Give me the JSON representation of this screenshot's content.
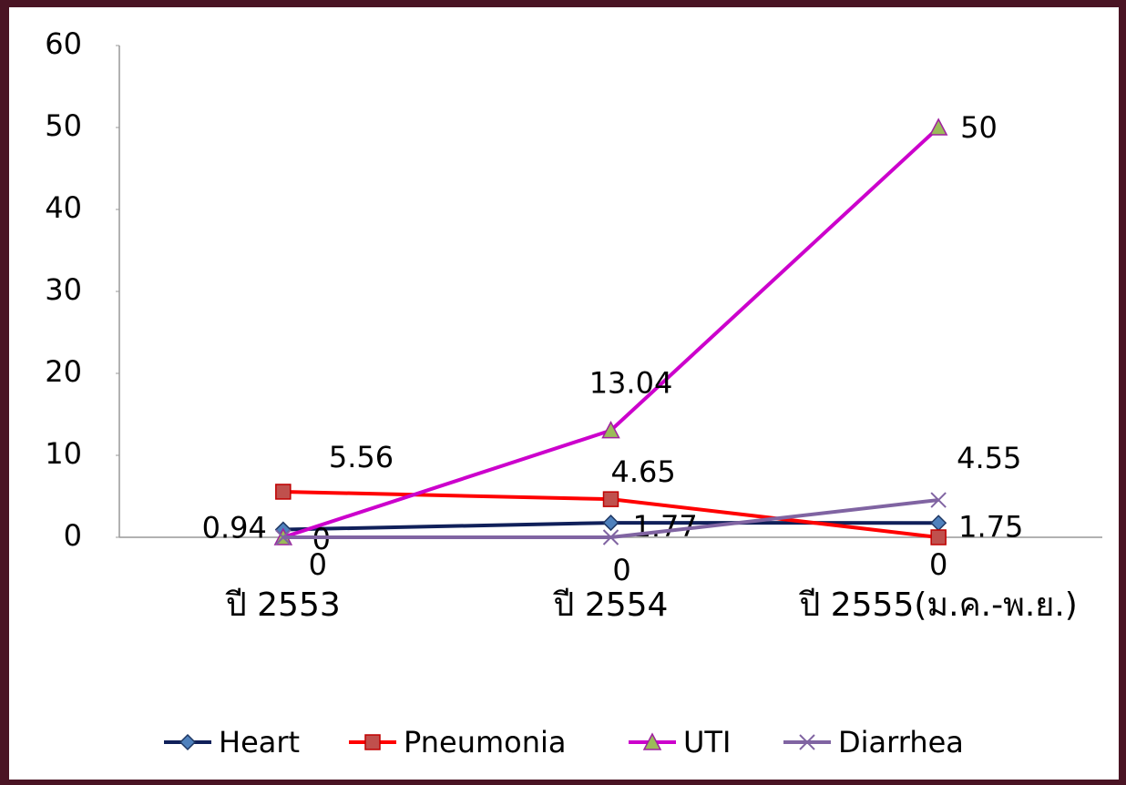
{
  "chart_data": {
    "type": "line",
    "categories": [
      "ปี 2553",
      "ปี 2554",
      "ปี 2555(ม.ค.-พ.ย.)"
    ],
    "series": [
      {
        "name": "Heart",
        "color": "#10205a",
        "marker": "diamond",
        "marker_color": "#4f81bd",
        "values": [
          0.94,
          1.77,
          1.75
        ]
      },
      {
        "name": "Pneumonia",
        "color": "#ff0000",
        "marker": "square",
        "marker_color": "#c0504d",
        "values": [
          5.56,
          4.65,
          0
        ]
      },
      {
        "name": "UTI",
        "color": "#cc00cc",
        "marker": "triangle",
        "marker_color": "#9bbb59",
        "values": [
          0,
          13.04,
          50
        ]
      },
      {
        "name": "Diarrhea",
        "color": "#8064a2",
        "marker": "x",
        "marker_color": "#8064a2",
        "values": [
          0,
          0,
          4.55
        ]
      }
    ],
    "ylim": [
      0,
      60
    ],
    "yticks": [
      0,
      10,
      20,
      30,
      40,
      50,
      60
    ],
    "legend": "bottom"
  }
}
